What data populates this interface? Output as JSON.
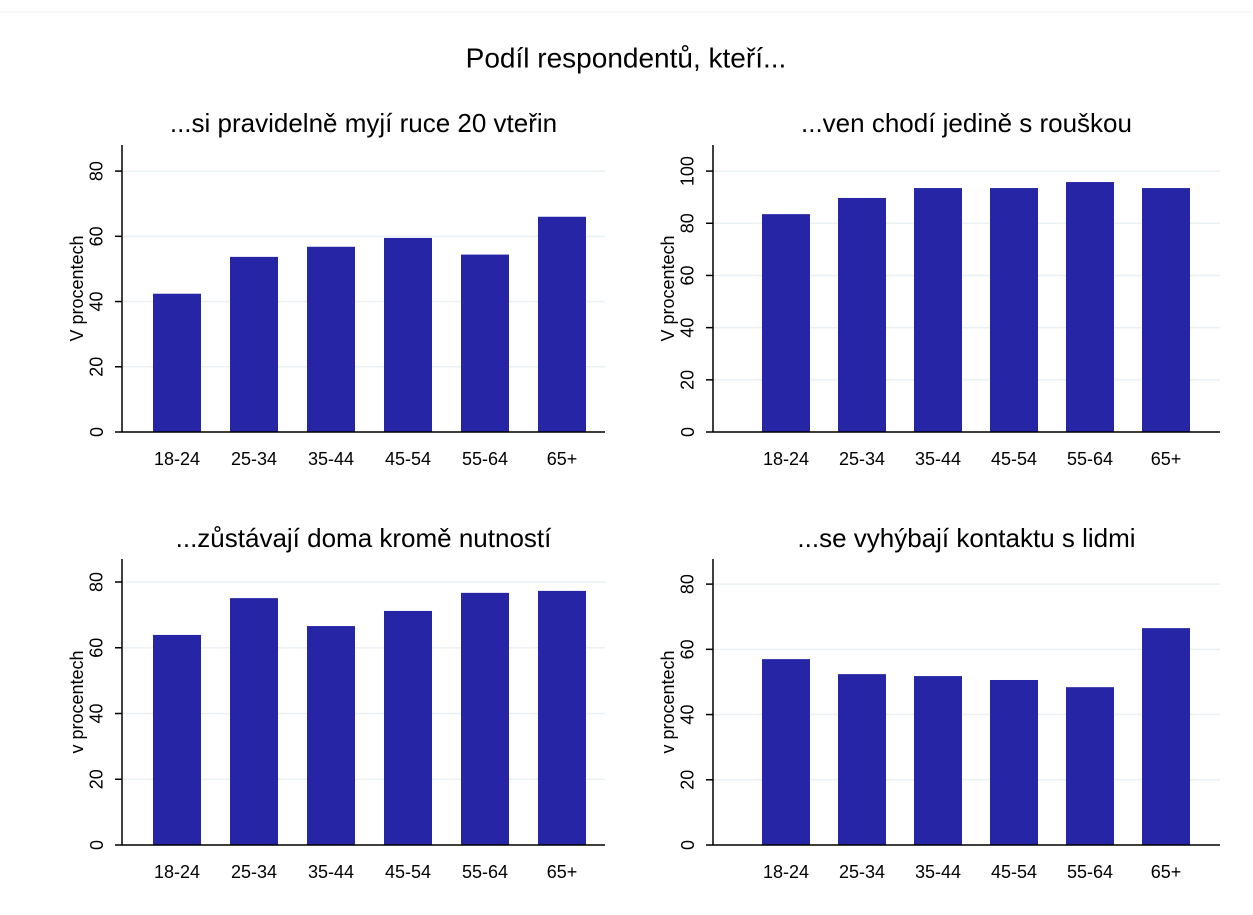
{
  "title": "Podíl respondentů, kteří...",
  "chart_data": [
    {
      "type": "bar",
      "title": "...si pravidelně myjí ruce 20 vteřin",
      "ylabel": "V procentech",
      "categories": [
        "18-24",
        "25-34",
        "35-44",
        "45-54",
        "55-64",
        "65+"
      ],
      "values": [
        42.4,
        53.7,
        56.8,
        59.5,
        54.4,
        66
      ],
      "color": "#2525a5",
      "ylim": [
        0,
        88
      ],
      "yticks": [
        0,
        20,
        40,
        60,
        80
      ],
      "grid": true
    },
    {
      "type": "bar",
      "title": "...ven chodí jedině s rouškou",
      "ylabel": "V procentech",
      "categories": [
        "18-24",
        "25-34",
        "35-44",
        "45-54",
        "55-64",
        "65+"
      ],
      "values": [
        83.5,
        89.7,
        93.5,
        93.5,
        95.8,
        93.5
      ],
      "color": "#2525a5",
      "ylim": [
        0,
        110
      ],
      "yticks": [
        0,
        20,
        40,
        60,
        80,
        100
      ],
      "grid": true
    },
    {
      "type": "bar",
      "title": "...zůstávají doma kromě nutností",
      "ylabel": "v procentech",
      "categories": [
        "18-24",
        "25-34",
        "35-44",
        "45-54",
        "55-64",
        "65+"
      ],
      "values": [
        63.9,
        75.1,
        66.6,
        71.2,
        76.7,
        77.3
      ],
      "color": "#2525a5",
      "ylim": [
        0,
        87
      ],
      "yticks": [
        0,
        20,
        40,
        60,
        80
      ],
      "grid": true
    },
    {
      "type": "bar",
      "title": "...se vyhýbají kontaktu s lidmi",
      "ylabel": "v procentech",
      "categories": [
        "18-24",
        "25-34",
        "35-44",
        "45-54",
        "55-64",
        "65+"
      ],
      "values": [
        57.0,
        52.4,
        51.8,
        50.6,
        48.4,
        66.5
      ],
      "color": "#2525a5",
      "ylim": [
        0,
        87.7
      ],
      "yticks": [
        0,
        20,
        40,
        60,
        80
      ],
      "grid": true
    }
  ]
}
